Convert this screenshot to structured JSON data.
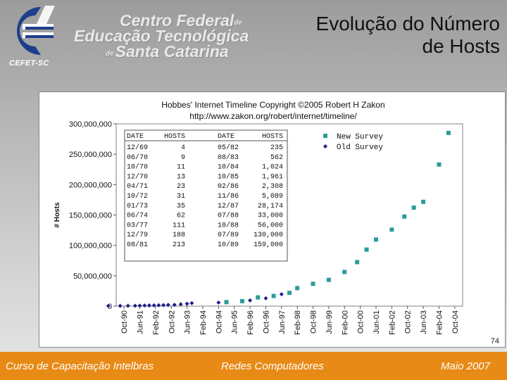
{
  "logo": {
    "abbr": "CEFET-SC",
    "line1_prefix": "",
    "line1": "Centro Federal",
    "line1_suffix": "de",
    "line2": "Educação Tecnológica",
    "line3_prefix": "de",
    "line3": "Santa Catarina"
  },
  "slide": {
    "title_line1": "Evolução do Número",
    "title_line2": "de Hosts",
    "page_number": "74"
  },
  "footer": {
    "left": "Curso de Capacitação Intelbras",
    "center": "Redes Computadores",
    "right": "Maio 2007"
  },
  "colors": {
    "footer": "#e78a16",
    "new_survey": "#2b9c98",
    "old_survey": "#1c1c8a"
  },
  "chart_data": {
    "type": "scatter",
    "title": "Hobbes' Internet Timeline Copyright ©2005 Robert H Zakon",
    "subtitle": "http://www.zakon.org/robert/internet/timeline/",
    "ylabel": "# Hosts",
    "xlabel": "",
    "ylim": [
      0,
      300000000
    ],
    "yticks": [
      "0",
      "50,000,000",
      "100,000,000",
      "150,000,000",
      "200,000,000",
      "250,000,000",
      "300,000,000"
    ],
    "xticks": [
      "Oct-90",
      "Jun-91",
      "Feb-92",
      "Oct-92",
      "Jun-93",
      "Feb-94",
      "Oct-94",
      "Jun-95",
      "Feb-96",
      "Oct-96",
      "Jun-97",
      "Feb-98",
      "Oct-98",
      "Jun-99",
      "Feb-00",
      "Oct-00",
      "Jun-01",
      "Feb-02",
      "Oct-02",
      "Jun-03",
      "Feb-04",
      "Oct-04"
    ],
    "legend": [
      "New Survey",
      "Old Survey"
    ],
    "series": [
      {
        "name": "Old Survey",
        "x": [
          -1.0,
          -0.25,
          0.25,
          0.7,
          1.0,
          1.3,
          1.6,
          1.9,
          2.2,
          2.5,
          2.8,
          3.2,
          3.6,
          4.0,
          4.3,
          6.0,
          8.0,
          9.0,
          10.0
        ],
        "y": [
          313000,
          376000,
          535000,
          617000,
          727000,
          992000,
          1136000,
          1313000,
          1486000,
          1776000,
          2056000,
          2217000,
          2970000,
          3864000,
          4852000,
          5846000,
          9472000,
          12881000,
          19540000
        ]
      },
      {
        "name": "New Survey",
        "x": [
          6.5,
          7.5,
          8.5,
          9.5,
          10.5,
          11.0,
          12.0,
          13.0,
          14.0,
          14.8,
          15.4,
          16.0,
          17.0,
          17.8,
          18.4,
          19.0,
          20.0,
          20.6
        ],
        "y": [
          6642000,
          8200000,
          14352000,
          16729000,
          21819000,
          29670000,
          36739000,
          43230000,
          56218000,
          72398000,
          93047000,
          109574000,
          125888000,
          147344000,
          162128000,
          171638000,
          233101000,
          285139000
        ]
      }
    ],
    "table": {
      "header": [
        "DATE",
        "HOSTS",
        "DATE",
        "HOSTS"
      ],
      "rows": [
        [
          "12/69",
          "4",
          "05/82",
          "235"
        ],
        [
          "06/70",
          "9",
          "08/83",
          "562"
        ],
        [
          "10/70",
          "11",
          "10/84",
          "1,024"
        ],
        [
          "12/70",
          "13",
          "10/85",
          "1,961"
        ],
        [
          "04/71",
          "23",
          "02/86",
          "2,308"
        ],
        [
          "10/72",
          "31",
          "11/86",
          "5,089"
        ],
        [
          "01/73",
          "35",
          "12/87",
          "28,174"
        ],
        [
          "06/74",
          "62",
          "07/88",
          "33,000"
        ],
        [
          "03/77",
          "111",
          "10/88",
          "56,000"
        ],
        [
          "12/79",
          "188",
          "07/89",
          "130,000"
        ],
        [
          "08/81",
          "213",
          "10/89",
          "159,000"
        ]
      ]
    }
  }
}
